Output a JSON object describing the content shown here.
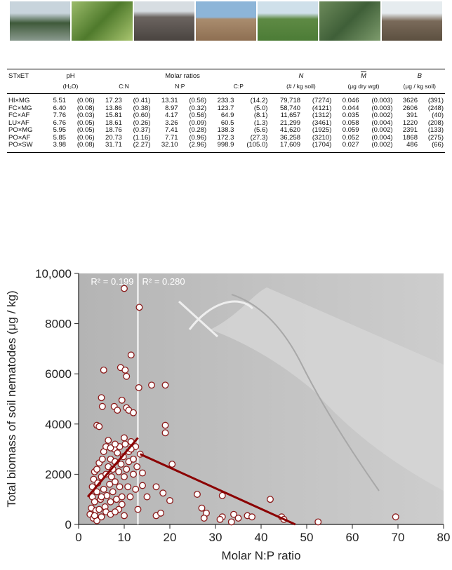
{
  "table": {
    "header": [
      "STxET",
      "pH",
      "Molar ratios",
      "N",
      "M",
      "B"
    ],
    "subheader": [
      "(H₂O)",
      "C:N",
      "N:P",
      "C:P",
      "(# / kg soil)",
      "(μg dry wgt)",
      "(μg / kg soil)"
    ],
    "rows": [
      [
        "HI×MG",
        "5.51",
        "(0.06)",
        "17.23",
        "(0.41)",
        "13.31",
        "(0.56)",
        "233.3",
        "(14.2)",
        "79,718",
        "(7274)",
        "0.046",
        "(0.003)",
        "3626",
        "(391)"
      ],
      [
        "FC×MG",
        "6.40",
        "(0.08)",
        "13.86",
        "(0.38)",
        "8.97",
        "(0.32)",
        "123.7",
        "(5.0)",
        "58,740",
        "(4121)",
        "0.044",
        "(0.003)",
        "2606",
        "(248)"
      ],
      [
        "FC×AF",
        "7.76",
        "(0.03)",
        "15.81",
        "(0.60)",
        "4.17",
        "(0.56)",
        "64.9",
        "(8.1)",
        "11,657",
        "(1312)",
        "0.035",
        "(0.002)",
        "391",
        "(40)"
      ],
      [
        "LU×AF",
        "6.76",
        "(0.05)",
        "18.61",
        "(0.26)",
        "3.26",
        "(0.09)",
        "60.5",
        "(1.3)",
        "21,299",
        "(3461)",
        "0.058",
        "(0.004)",
        "1220",
        "(208)"
      ],
      [
        "PO×MG",
        "5.95",
        "(0.05)",
        "18.76",
        "(0.37)",
        "7.41",
        "(0.28)",
        "138.3",
        "(5.6)",
        "41,620",
        "(1925)",
        "0.059",
        "(0.002)",
        "2391",
        "(133)"
      ],
      [
        "PO×AF",
        "5.85",
        "(0.06)",
        "20.73",
        "(1.16)",
        "7.71",
        "(0.96)",
        "172.3",
        "(27.3)",
        "36,258",
        "(3210)",
        "0.052",
        "(0.004)",
        "1868",
        "(275)"
      ],
      [
        "PO×SW",
        "3.98",
        "(0.08)",
        "31.71",
        "(2.27)",
        "32.10",
        "(2.96)",
        "998.9",
        "(105.0)",
        "17,609",
        "(1704)",
        "0.027",
        "(0.002)",
        "486",
        "(66)"
      ]
    ]
  },
  "chart_data": {
    "type": "scatter",
    "x_label": "Molar N:P ratio",
    "y_label": "Total biomass of soil nematodes (μg / kg)",
    "xlim": [
      0,
      80
    ],
    "xticks": [
      0,
      10,
      20,
      30,
      40,
      50,
      60,
      70,
      80
    ],
    "ylim": [
      0,
      10000
    ],
    "yticks": [
      0,
      2000,
      4000,
      6000,
      8000,
      {
        "value": 10000,
        "label": "10,000"
      }
    ],
    "annotations": [
      "R² = 0.199",
      "R² = 0.280"
    ],
    "breakpoint": 13,
    "color": "#8b1a1a",
    "x": [
      2.5,
      2.8,
      3,
      3,
      3.2,
      3.3,
      3.5,
      3.5,
      3.8,
      4,
      4,
      4,
      4.2,
      4.5,
      4.5,
      4.8,
      5,
      5,
      5.2,
      5.5,
      5.5,
      5.8,
      6,
      6,
      6.2,
      6.5,
      6.8,
      7,
      7,
      7.2,
      7.5,
      7.5,
      7.8,
      8,
      8,
      8.3,
      8.5,
      8.8,
      9,
      9,
      9.3,
      9.5,
      9.8,
      10,
      10.2,
      10.5,
      10.8,
      11,
      11,
      11.3,
      11.5,
      12,
      12,
      12.5,
      12.5,
      12.8,
      6,
      5,
      3.5,
      8.8,
      9.5,
      7,
      10,
      13.3,
      11.5,
      5.5,
      9.2,
      10.2,
      10.5,
      13.2,
      16,
      19,
      5,
      9.5,
      7.8,
      5.2,
      10.5,
      11,
      8.5,
      12,
      4,
      4.5,
      19,
      19,
      6.5,
      10,
      7,
      8,
      11.5,
      13.5,
      14,
      17,
      18.5,
      20.5,
      14,
      15,
      20,
      13,
      17,
      18,
      26,
      27,
      28,
      27.5,
      31.5,
      31.5,
      31,
      33.5,
      34,
      35,
      37,
      38,
      42,
      44.5,
      45,
      52.5,
      69.5,
      10,
      8
    ],
    "y": [
      400,
      650,
      1100,
      1500,
      250,
      1800,
      2100,
      900,
      550,
      1300,
      2200,
      150,
      1650,
      600,
      2450,
      1000,
      1900,
      300,
      2600,
      1400,
      2900,
      700,
      2000,
      3100,
      1150,
      2300,
      1600,
      900,
      2600,
      1900,
      2200,
      1300,
      3000,
      1700,
      2500,
      1000,
      2850,
      2100,
      1500,
      3100,
      2400,
      1100,
      2700,
      1900,
      3200,
      2200,
      1500,
      2900,
      2500,
      1100,
      3300,
      2600,
      2000,
      3100,
      1400,
      2300,
      500,
      1100,
      350,
      600,
      800,
      400,
      9400,
      8650,
      6750,
      6150,
      6250,
      6150,
      5900,
      5450,
      5550,
      5550,
      5050,
      4950,
      4700,
      4700,
      4650,
      4550,
      4550,
      4450,
      3950,
      3900,
      3950,
      3650,
      3350,
      3450,
      3050,
      3200,
      3000,
      2800,
      2050,
      1500,
      1250,
      2400,
      1550,
      1100,
      950,
      600,
      350,
      450,
      1200,
      650,
      450,
      250,
      1150,
      300,
      200,
      100,
      400,
      250,
      350,
      300,
      1000,
      300,
      200,
      100,
      300,
      350,
      500
    ],
    "fit_lines": [
      {
        "x": [
          2,
          13
        ],
        "y": [
          1100,
          3450
        ],
        "color": "#8b0000"
      },
      {
        "x": [
          13.5,
          47.5
        ],
        "y": [
          2800,
          0
        ],
        "color": "#8b0000"
      }
    ]
  }
}
